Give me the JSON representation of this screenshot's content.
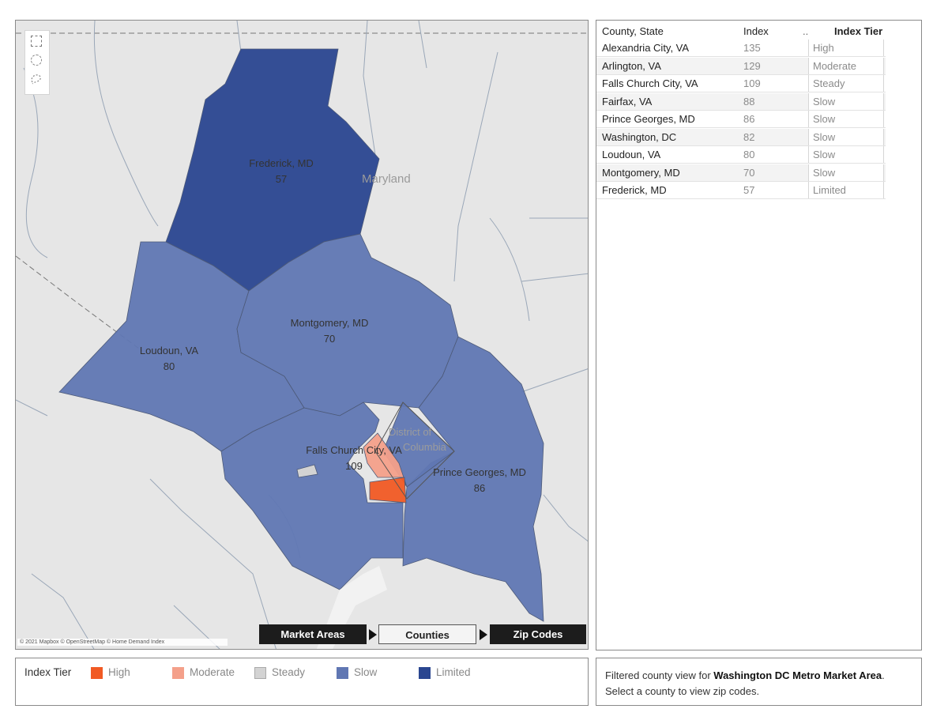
{
  "map": {
    "state_label": "Maryland",
    "district_label_line1": "District of",
    "district_label_line2": "Columbia",
    "attribution": "© 2021 Mapbox © OpenStreetMap © Home Demand Index",
    "regions": [
      {
        "name": "Frederick, MD",
        "index": "57",
        "tier": "Limited"
      },
      {
        "name": "Montgomery, MD",
        "index": "70",
        "tier": "Slow"
      },
      {
        "name": "Loudoun, VA",
        "index": "80",
        "tier": "Slow"
      },
      {
        "name": "Falls Church City, VA",
        "index": "109",
        "tier": "Steady"
      },
      {
        "name": "Prince Georges, MD",
        "index": "86",
        "tier": "Slow"
      }
    ],
    "navigation": [
      "Market Areas",
      "Counties",
      "Zip Codes"
    ]
  },
  "tier_colors": {
    "High": "#f15a24",
    "Moderate": "#f4a08a",
    "Steady": "#d3d3d3",
    "Slow": "#6077b3",
    "Limited": "#2a4690"
  },
  "table": {
    "headers": {
      "county": "County, State",
      "index": "Index",
      "sort_marker": "..",
      "tier": "Index Tier"
    },
    "rows": [
      {
        "county": "Alexandria City, VA",
        "index": "135",
        "tier": "High"
      },
      {
        "county": "Arlington, VA",
        "index": "129",
        "tier": "Moderate"
      },
      {
        "county": "Falls Church City, VA",
        "index": "109",
        "tier": "Steady"
      },
      {
        "county": "Fairfax, VA",
        "index": "88",
        "tier": "Slow"
      },
      {
        "county": "Prince Georges, MD",
        "index": "86",
        "tier": "Slow"
      },
      {
        "county": "Washington, DC",
        "index": "82",
        "tier": "Slow"
      },
      {
        "county": "Loudoun, VA",
        "index": "80",
        "tier": "Slow"
      },
      {
        "county": "Montgomery, MD",
        "index": "70",
        "tier": "Slow"
      },
      {
        "county": "Frederick, MD",
        "index": "57",
        "tier": "Limited"
      }
    ]
  },
  "legend": {
    "title": "Index Tier",
    "items": [
      "High",
      "Moderate",
      "Steady",
      "Slow",
      "Limited"
    ]
  },
  "info": {
    "line1_prefix": "Filtered county view for ",
    "line1_bold": "Washington DC Metro Market Area",
    "line1_suffix": ".",
    "line2": "Select a county to view zip codes."
  }
}
